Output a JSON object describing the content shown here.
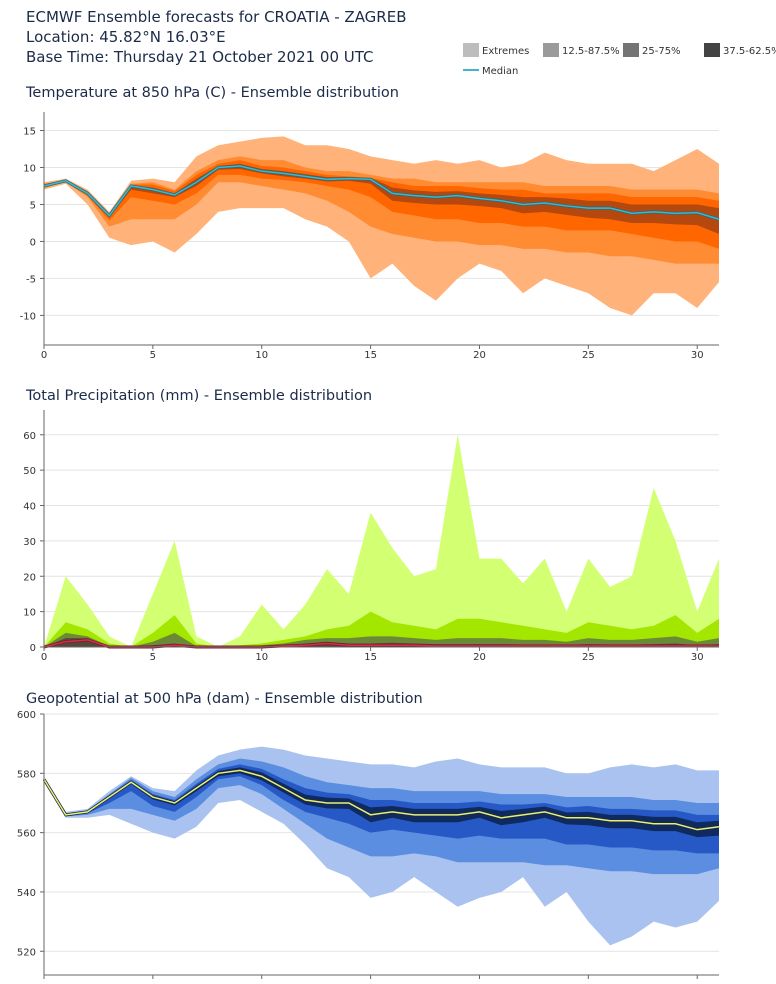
{
  "header": {
    "lines": [
      "ECMWF Ensemble forecasts for CROATIA - ZAGREB",
      "Location:  45.82°N 16.03°E",
      "Base Time: Thursday 21 October 2021 00 UTC"
    ]
  },
  "legend": [
    {
      "name": "Extremes",
      "color": "#bdbdbd"
    },
    {
      "name": "12.5-87.5%",
      "color": "#9a9a9a"
    },
    {
      "name": "25-75%",
      "color": "#747474"
    },
    {
      "name": "37.5-62.5%",
      "color": "#444444"
    },
    {
      "name": "Median",
      "color": "#3fb6c9"
    }
  ],
  "chart_data": [
    {
      "type": "band",
      "title": "Temperature at 850 hPa (C) - Ensemble distribution",
      "x": [
        0,
        1,
        2,
        3,
        4,
        5,
        6,
        7,
        8,
        9,
        10,
        11,
        12,
        13,
        14,
        15,
        16,
        17,
        18,
        19,
        20,
        21,
        22,
        23,
        24,
        25,
        26,
        27,
        28,
        29,
        30,
        31
      ],
      "xlim": [
        0,
        31
      ],
      "xticks": [
        0,
        5,
        10,
        15,
        20,
        25,
        30
      ],
      "ylim": [
        -14,
        17.5
      ],
      "yticks": [
        -10,
        -5,
        0,
        5,
        10,
        15
      ],
      "grid": true,
      "bands": [
        {
          "color": "#ffb27a",
          "high": [
            8,
            8.5,
            7,
            4,
            8.2,
            8.5,
            8,
            11.5,
            13,
            13.5,
            14,
            14.2,
            13,
            13,
            12.5,
            11.5,
            11,
            10.5,
            11,
            10.5,
            11,
            10,
            10.5,
            12,
            11,
            10.5,
            10.5,
            10.5,
            9.5,
            11,
            12.5,
            10.5
          ],
          "low": [
            7,
            7.8,
            5,
            0.5,
            -0.5,
            0,
            -1.5,
            1,
            4,
            4.5,
            4.5,
            4.5,
            3,
            2,
            0,
            -5,
            -3,
            -6,
            -8,
            -5,
            -3,
            -4,
            -7,
            -5,
            -6,
            -7,
            -9,
            -10,
            -7,
            -7,
            -9,
            -5.5
          ]
        },
        {
          "color": "#ff8c33",
          "high": [
            7.8,
            8.3,
            6.8,
            3.8,
            7.8,
            8,
            7,
            9.5,
            11,
            11.5,
            11,
            11,
            10,
            9.5,
            9.5,
            9,
            8.5,
            8.5,
            8,
            8,
            8,
            8,
            8,
            7.5,
            7.5,
            7.5,
            7.5,
            7,
            7,
            7,
            7,
            6.5
          ],
          "low": [
            7.2,
            8,
            6,
            2,
            3,
            3,
            3,
            5,
            8,
            8,
            7.5,
            7,
            6.5,
            5.5,
            4,
            2,
            1,
            0.5,
            0,
            0,
            -0.5,
            -0.5,
            -1,
            -1,
            -1.5,
            -1.5,
            -2,
            -2,
            -2.5,
            -3,
            -3,
            -3
          ]
        },
        {
          "color": "#ff6600",
          "high": [
            7.7,
            8.3,
            6.7,
            3.7,
            7.7,
            7.7,
            6.8,
            9,
            10.5,
            11,
            10.2,
            10,
            9.5,
            9,
            8.8,
            8.6,
            8,
            7.5,
            7.5,
            7.5,
            7.2,
            7,
            7,
            6.5,
            6.5,
            6.5,
            6.5,
            6,
            6,
            6,
            6,
            5.5
          ],
          "low": [
            7.3,
            8,
            6.2,
            2.8,
            6,
            5.5,
            5,
            6.5,
            9,
            9,
            8.5,
            8.3,
            8,
            7.5,
            7,
            6,
            4,
            3.5,
            3,
            3,
            2.5,
            2.5,
            2,
            2,
            1.5,
            1.5,
            1.5,
            1,
            0.5,
            0,
            0,
            -1
          ]
        },
        {
          "color": "#b5480f",
          "high": [
            7.6,
            8.3,
            6.6,
            3.6,
            7.6,
            7.3,
            6.5,
            8.5,
            10.2,
            10.5,
            9.8,
            9.5,
            9.1,
            8.7,
            8.7,
            8.6,
            7.3,
            6.9,
            6.7,
            6.8,
            6.5,
            6.3,
            6,
            6,
            5.8,
            5.5,
            5.5,
            5,
            5,
            5,
            5,
            4.5
          ],
          "low": [
            7.4,
            8.1,
            6.3,
            3.3,
            7,
            6.5,
            6,
            7.5,
            9.7,
            9.8,
            9.2,
            8.8,
            8.5,
            8.1,
            8.2,
            7.8,
            5.5,
            5.2,
            5,
            5,
            4.8,
            4.5,
            3.8,
            4,
            3.6,
            3.2,
            3,
            2.5,
            2.5,
            2.3,
            2.2,
            1
          ]
        }
      ],
      "median": {
        "color": "#3fb6c9",
        "outline": "#2a6a74",
        "values": [
          7.5,
          8.2,
          6.5,
          3.5,
          7.5,
          7,
          6.3,
          8,
          10,
          10.2,
          9.5,
          9.2,
          8.8,
          8.4,
          8.5,
          8.4,
          6.5,
          6.2,
          6,
          6.2,
          5.8,
          5.5,
          5,
          5.2,
          4.8,
          4.5,
          4.5,
          3.8,
          4,
          3.8,
          3.9,
          3
        ]
      }
    },
    {
      "type": "band",
      "title": "Total Precipitation (mm) - Ensemble distribution",
      "x": [
        0,
        1,
        2,
        3,
        4,
        5,
        6,
        7,
        8,
        9,
        10,
        11,
        12,
        13,
        14,
        15,
        16,
        17,
        18,
        19,
        20,
        21,
        22,
        23,
        24,
        25,
        26,
        27,
        28,
        29,
        30,
        31
      ],
      "xlim": [
        0,
        31
      ],
      "xticks": [
        0,
        5,
        10,
        15,
        20,
        25,
        30
      ],
      "ylim": [
        0,
        67
      ],
      "yticks": [
        0,
        10,
        20,
        30,
        40,
        50,
        60
      ],
      "grid": true,
      "bands": [
        {
          "color": "#d3ff73",
          "high": [
            0,
            20,
            12,
            3,
            0,
            15,
            30,
            3,
            0,
            3,
            12,
            5,
            12,
            22,
            15,
            38,
            28,
            20,
            22,
            60,
            25,
            25,
            18,
            25,
            10,
            25,
            17,
            20,
            45,
            30,
            10,
            25
          ],
          "low": [
            0,
            0,
            0,
            0,
            0,
            0,
            0,
            0,
            0,
            0,
            0,
            0,
            0,
            0,
            0,
            0,
            0,
            0,
            0,
            0,
            0,
            0,
            0,
            0,
            0,
            0,
            0,
            0,
            0,
            0,
            0,
            0
          ]
        },
        {
          "color": "#a3e600",
          "high": [
            0,
            7,
            5,
            1,
            0,
            4,
            9,
            1,
            0,
            0.5,
            1,
            2,
            3,
            5,
            6,
            10,
            7,
            6,
            5,
            8,
            8,
            7,
            6,
            5,
            4,
            7,
            6,
            5,
            6,
            9,
            4,
            8
          ],
          "low": [
            0,
            0,
            0,
            0,
            0,
            0,
            0,
            0,
            0,
            0,
            0,
            0,
            0,
            0,
            0,
            0,
            0,
            0,
            0,
            0,
            0,
            0,
            0,
            0,
            0,
            0,
            0,
            0,
            0,
            0,
            0,
            0
          ]
        },
        {
          "color": "#6b8a38",
          "high": [
            0,
            4,
            3,
            0.2,
            0,
            1.5,
            4,
            0.2,
            0,
            0,
            0.5,
            1,
            2,
            2.5,
            2.5,
            3,
            3,
            2.5,
            2,
            2.5,
            2.5,
            2.5,
            2,
            2,
            1.5,
            2.5,
            2,
            2,
            2.5,
            3,
            1.5,
            2.5
          ],
          "low": [
            0,
            0,
            0,
            0,
            0,
            0,
            0,
            0,
            0,
            0,
            0,
            0,
            0,
            0,
            0,
            0,
            0,
            0,
            0,
            0,
            0,
            0,
            0,
            0,
            0,
            0,
            0,
            0,
            0,
            0,
            0,
            0
          ]
        },
        {
          "color": "#564a36",
          "high": [
            0,
            2.5,
            2.5,
            0,
            0,
            0.5,
            1,
            0,
            0,
            0,
            0.2,
            0.5,
            1,
            1.5,
            1,
            1,
            1.2,
            1,
            0.8,
            0.8,
            0.8,
            0.8,
            0.7,
            0.7,
            0.6,
            0.8,
            0.7,
            0.7,
            0.8,
            1,
            0.5,
            0.8
          ],
          "low": [
            0,
            0,
            0,
            0,
            0,
            0,
            0,
            0,
            0,
            0,
            0,
            0,
            0,
            0,
            0,
            0,
            0,
            0,
            0,
            0,
            0,
            0,
            0,
            0,
            0,
            0,
            0,
            0,
            0,
            0,
            0,
            0
          ]
        }
      ],
      "median": {
        "color": "#d0304e",
        "outline": "#7a1a2a",
        "values": [
          0,
          1.5,
          2,
          0,
          0,
          0,
          0.5,
          0,
          0,
          0,
          0,
          0.3,
          0.5,
          1,
          0.5,
          0.5,
          0.5,
          0.5,
          0.3,
          0.3,
          0.3,
          0.3,
          0.3,
          0.3,
          0.3,
          0.3,
          0.3,
          0.3,
          0.3,
          0.3,
          0.3,
          0.3
        ]
      }
    },
    {
      "type": "band",
      "title": "Geopotential at 500 hPa (dam) - Ensemble distribution",
      "x": [
        0,
        1,
        2,
        3,
        4,
        5,
        6,
        7,
        8,
        9,
        10,
        11,
        12,
        13,
        14,
        15,
        16,
        17,
        18,
        19,
        20,
        21,
        22,
        23,
        24,
        25,
        26,
        27,
        28,
        29,
        30,
        31
      ],
      "xlim": [
        0,
        31
      ],
      "xticks": [
        0,
        5,
        10,
        15,
        20,
        25,
        30
      ],
      "ylim": [
        512,
        600
      ],
      "yticks": [
        520,
        540,
        560,
        580,
        600
      ],
      "grid": true,
      "bands": [
        {
          "color": "#a9c2ef",
          "high": [
            578,
            567,
            568,
            574,
            579,
            575,
            574,
            581,
            586,
            588,
            589,
            588,
            586,
            585,
            584,
            583,
            583,
            582,
            584,
            585,
            583,
            582,
            582,
            582,
            580,
            580,
            582,
            583,
            582,
            583,
            581,
            581
          ],
          "low": [
            578,
            565,
            565,
            566,
            563,
            560,
            558,
            562,
            570,
            571,
            567,
            563,
            556,
            548,
            545,
            538,
            540,
            545,
            540,
            535,
            538,
            540,
            545,
            535,
            540,
            530,
            522,
            525,
            530,
            528,
            530,
            537
          ]
        },
        {
          "color": "#5b8ee0",
          "high": [
            578,
            566.5,
            567.5,
            573,
            578.5,
            574,
            572,
            578,
            583,
            585,
            584,
            582,
            579,
            577,
            576,
            575,
            575,
            574,
            574,
            574,
            574,
            573,
            573,
            573,
            572,
            572,
            572,
            572,
            571,
            571,
            570,
            570
          ],
          "low": [
            578,
            565.5,
            566,
            568,
            568,
            566,
            564,
            568,
            575,
            576,
            573,
            568,
            563,
            558,
            555,
            552,
            552,
            553,
            552,
            550,
            550,
            550,
            550,
            549,
            549,
            548,
            547,
            547,
            546,
            546,
            546,
            548
          ]
        },
        {
          "color": "#2658c6",
          "high": [
            578,
            566.3,
            567.3,
            572.7,
            577.8,
            573,
            571,
            576.5,
            581.5,
            583,
            581.5,
            578,
            575,
            573.5,
            573,
            571,
            571,
            570,
            570,
            570,
            570.5,
            569.5,
            569.5,
            570,
            568.5,
            569,
            568,
            568,
            567.5,
            567.5,
            566,
            566
          ],
          "low": [
            578,
            565.7,
            566.5,
            570,
            574,
            569,
            567,
            572,
            578,
            579,
            576,
            571,
            567,
            565,
            563,
            560,
            561,
            560,
            559,
            558,
            559,
            558,
            558,
            558,
            556,
            556,
            555,
            555,
            554,
            554,
            553,
            553
          ]
        },
        {
          "color": "#0e2a5e",
          "high": [
            578,
            566.2,
            567.2,
            572.4,
            577.5,
            572.6,
            570.6,
            575.8,
            580.8,
            582,
            580.3,
            576.5,
            572.8,
            571.8,
            571.5,
            568.5,
            569,
            568,
            568,
            568,
            568.7,
            567.3,
            568,
            568.8,
            566.8,
            567,
            566,
            566,
            565.3,
            565.3,
            563.5,
            564
          ],
          "low": [
            578,
            565.8,
            566.8,
            571.5,
            576.4,
            571.2,
            569.2,
            574,
            579,
            580,
            577.6,
            573.5,
            569.5,
            568.2,
            568,
            563.5,
            565,
            563.5,
            563.5,
            563.5,
            565,
            562.5,
            563.5,
            565,
            562.8,
            562.5,
            561.5,
            561.5,
            560.5,
            560.5,
            558.5,
            559
          ]
        }
      ],
      "median": {
        "color": "#e8f07a",
        "outline": "#1a2a40",
        "values": [
          578,
          566,
          567,
          572,
          577,
          572,
          570,
          575,
          580,
          581,
          579,
          575,
          571,
          570,
          570,
          566,
          567,
          566,
          566,
          566,
          567,
          565,
          566,
          567,
          565,
          565,
          564,
          564,
          563,
          563,
          561,
          562
        ]
      }
    }
  ]
}
